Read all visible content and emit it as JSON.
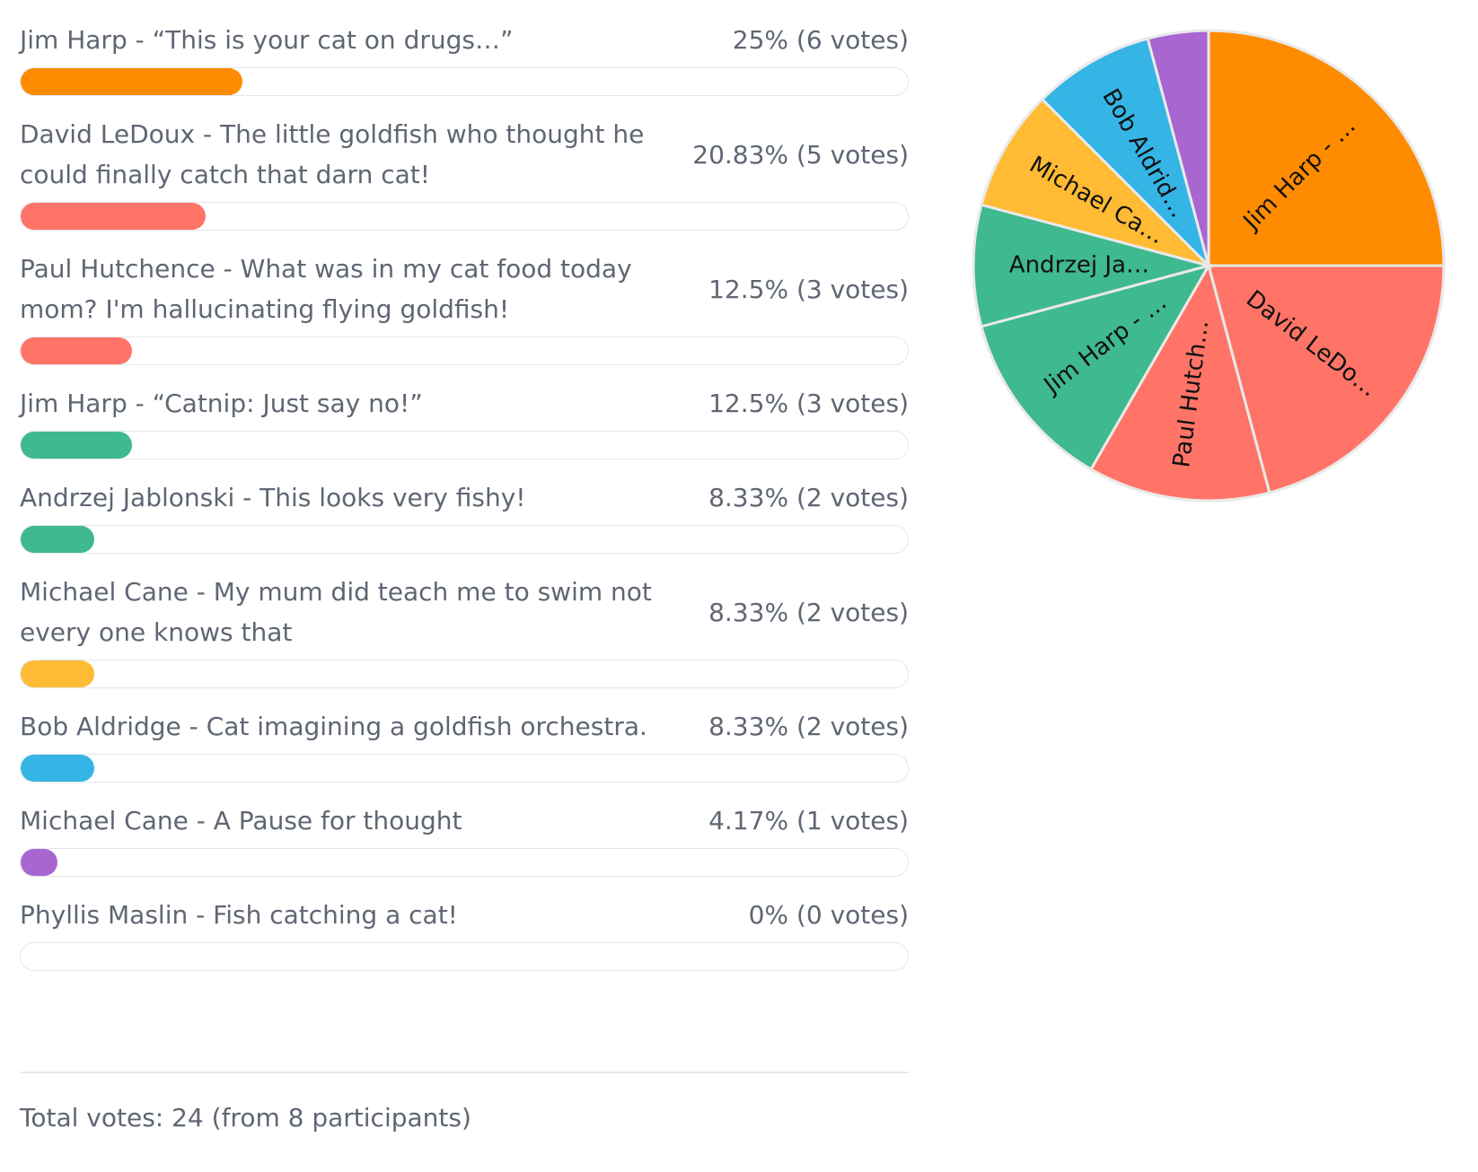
{
  "chart_data": {
    "type": "pie",
    "slices": [
      {
        "label": "Jim Harp - “This is your cat on drugs…”",
        "short_label": "Jim Harp - …",
        "result": "25% (6 votes)",
        "percent": 25,
        "votes": 6,
        "color": "#ff8c00"
      },
      {
        "label": "David LeDoux - The little goldfish who thought he could finally catch that darn cat!",
        "short_label": "David LeDo…",
        "result": "20.83% (5 votes)",
        "percent": 20.83,
        "votes": 5,
        "color": "#ff7466"
      },
      {
        "label": "Paul Hutchence - What was in my cat food today mom? I'm hallucinating flying goldfish!",
        "short_label": "Paul Hutch…",
        "result": "12.5% (3 votes)",
        "percent": 12.5,
        "votes": 3,
        "color": "#ff7466"
      },
      {
        "label": "Jim Harp - “Catnip: Just say no!”",
        "short_label": "Jim Harp - …",
        "result": "12.5% (3 votes)",
        "percent": 12.5,
        "votes": 3,
        "color": "#3fb98e"
      },
      {
        "label": "Andrzej Jablonski - This looks very fishy!",
        "short_label": "Andrzej Ja…",
        "result": "8.33% (2 votes)",
        "percent": 8.33,
        "votes": 2,
        "color": "#3fb98e"
      },
      {
        "label": "Michael Cane - My mum did teach me to swim not every one knows that",
        "short_label": "Michael Ca…",
        "result": "8.33% (2 votes)",
        "percent": 8.33,
        "votes": 2,
        "color": "#ffbb33"
      },
      {
        "label": "Bob Aldridge - Cat imagining a goldfish orchestra.",
        "short_label": "Bob Aldrid…",
        "result": "8.33% (2 votes)",
        "percent": 8.33,
        "votes": 2,
        "color": "#34b5e5"
      },
      {
        "label": "Michael Cane - A Pause for thought",
        "short_label": "",
        "result": "4.17% (1 votes)",
        "percent": 4.17,
        "votes": 1,
        "color": "#a866d1"
      },
      {
        "label": "Phyllis Maslin - Fish catching a cat!",
        "short_label": "",
        "result": "0% (0 votes)",
        "percent": 0,
        "votes": 0,
        "color": "#cccccc"
      }
    ],
    "total_text": "Total votes: 24 (from 8 participants)"
  }
}
